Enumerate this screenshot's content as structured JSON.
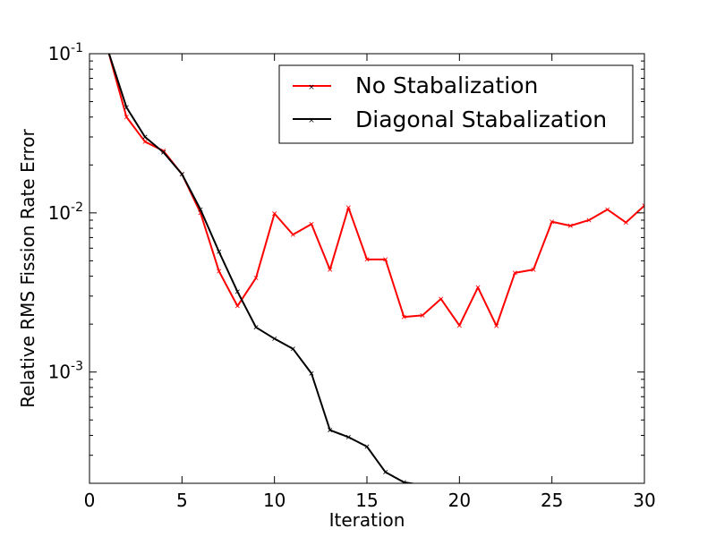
{
  "chart_data": {
    "type": "line",
    "xlabel": "Iteration",
    "ylabel": "Relative RMS Fission Rate Error",
    "xlim": [
      0,
      30
    ],
    "ylim": [
      0.0002,
      0.1
    ],
    "yscale": "log",
    "grid": false,
    "legend_position": "top-right",
    "x_ticks": [
      "0",
      "5",
      "10",
      "15",
      "20",
      "25",
      "30"
    ],
    "y_ticks": [
      {
        "base": "10",
        "exp": "-1",
        "value": 0.1
      },
      {
        "base": "10",
        "exp": "-2",
        "value": 0.01
      },
      {
        "base": "10",
        "exp": "-3",
        "value": 0.001
      }
    ],
    "series": [
      {
        "name": "No Stabalization",
        "color": "#ff0000",
        "x": [
          1,
          2,
          3,
          4,
          5,
          6,
          7,
          8,
          9,
          10,
          11,
          12,
          13,
          14,
          15,
          16,
          17,
          18,
          19,
          20,
          21,
          22,
          23,
          24,
          25,
          26,
          27,
          28,
          29,
          30
        ],
        "y": [
          0.105,
          0.04,
          0.028,
          0.0245,
          0.0175,
          0.01,
          0.0043,
          0.0026,
          0.0039,
          0.0099,
          0.0073,
          0.0085,
          0.0044,
          0.0108,
          0.0051,
          0.0051,
          0.00222,
          0.00227,
          0.00288,
          0.00196,
          0.0034,
          0.00195,
          0.0042,
          0.0044,
          0.0088,
          0.0083,
          0.009,
          0.0105,
          0.0087,
          0.0111
        ]
      },
      {
        "name": "Diagonal Stabalization",
        "color": "#000000",
        "x": [
          1,
          2,
          3,
          4,
          5,
          6,
          7,
          8,
          9,
          10,
          11,
          12,
          13,
          14,
          15,
          16,
          17,
          18
        ],
        "y": [
          0.105,
          0.046,
          0.03,
          0.024,
          0.0175,
          0.0105,
          0.0057,
          0.0032,
          0.00191,
          0.00162,
          0.0014,
          0.00098,
          0.000432,
          0.00039,
          0.00034,
          0.000235,
          0.000203,
          0.000195
        ]
      }
    ]
  }
}
